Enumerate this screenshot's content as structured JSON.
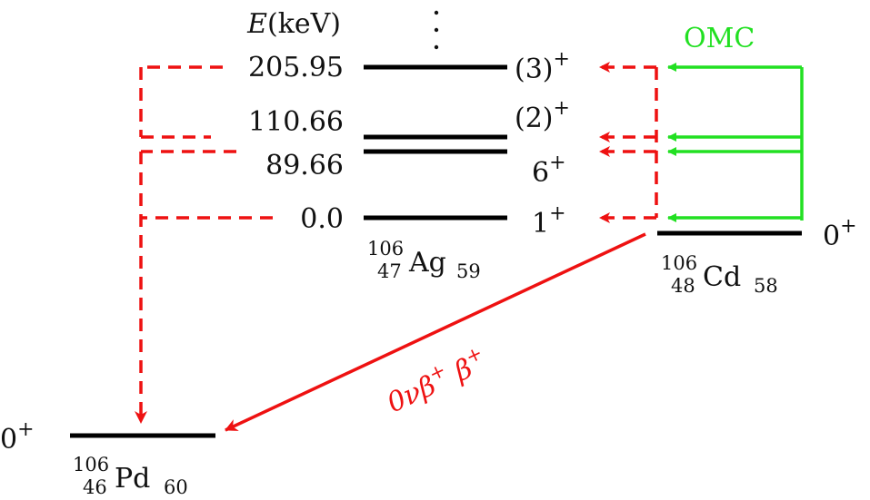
{
  "energy_axis": {
    "symbol": "E",
    "unit": "(keV)"
  },
  "levels": [
    {
      "energy": "205.95",
      "spin": "(3)",
      "parity": "+"
    },
    {
      "energy": "110.66",
      "spin": "(2)",
      "parity": "+"
    },
    {
      "energy": "89.66",
      "spin": "6",
      "parity": "+"
    },
    {
      "energy": "0.0",
      "spin": "1",
      "parity": "+"
    }
  ],
  "nuclei": {
    "intermediate": {
      "A": "106",
      "Z": "47",
      "symbol": "Ag",
      "N": "59"
    },
    "parent": {
      "A": "106",
      "Z": "48",
      "symbol": "Cd",
      "N": "58",
      "spin": "0",
      "parity": "+"
    },
    "daughter": {
      "A": "106",
      "Z": "46",
      "symbol": "Pd",
      "N": "60",
      "spin": "0",
      "parity": "+"
    }
  },
  "labels": {
    "omc": "OMC",
    "decay_nu": "0ν",
    "decay_beta": "β",
    "decay_plus": "+"
  },
  "colors": {
    "level": "#000000",
    "omc": "#22e022",
    "decay": "#ee1111"
  }
}
